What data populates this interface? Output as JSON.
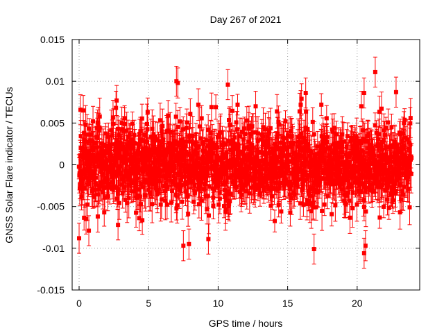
{
  "chart_data": {
    "type": "scatter",
    "title": "Day 267 of 2021",
    "xlabel": "GPS time / hours",
    "ylabel": "GNSS Solar Flare indicator / TECUs",
    "xlim": [
      -0.5,
      24.5
    ],
    "ylim": [
      -0.015,
      0.015
    ],
    "xticks": [
      0,
      5,
      10,
      15,
      20
    ],
    "yticks": [
      -0.015,
      -0.01,
      -0.005,
      0,
      0.005,
      0.01,
      0.015
    ],
    "xtick_labels": [
      "0",
      "5",
      "10",
      "15",
      "20"
    ],
    "ytick_labels": [
      "-0.015",
      "-0.01",
      "-0.005",
      "0",
      "0.005",
      "0.01",
      "0.015"
    ],
    "grid": true,
    "legend": "none",
    "error_bars": true,
    "series_color": "#ff0000",
    "x_range_of_data": [
      0,
      23.9
    ],
    "y_typical_range": [
      -0.005,
      0.005
    ],
    "series": [
      {
        "points": [
          {
            "x": 0.0,
            "y": -0.0088
          },
          {
            "x": 0.1,
            "y": 0.0066
          },
          {
            "x": 0.3,
            "y": 0.0065
          },
          {
            "x": 0.5,
            "y": -0.0065
          },
          {
            "x": 0.7,
            "y": -0.0079
          },
          {
            "x": 1.0,
            "y": 0.0052
          },
          {
            "x": 2.7,
            "y": 0.0077
          },
          {
            "x": 2.8,
            "y": -0.0072
          },
          {
            "x": 6.4,
            "y": 0.0059
          },
          {
            "x": 7.0,
            "y": 0.01
          },
          {
            "x": 7.1,
            "y": 0.0098
          },
          {
            "x": 7.5,
            "y": -0.0097
          },
          {
            "x": 7.9,
            "y": -0.0095
          },
          {
            "x": 8.0,
            "y": 0.0061
          },
          {
            "x": 9.3,
            "y": -0.0089
          },
          {
            "x": 10.7,
            "y": 0.0096
          },
          {
            "x": 12.7,
            "y": 0.007
          },
          {
            "x": 16.0,
            "y": 0.0079
          },
          {
            "x": 16.3,
            "y": 0.0086
          },
          {
            "x": 16.9,
            "y": -0.0101
          },
          {
            "x": 20.3,
            "y": 0.007
          },
          {
            "x": 20.5,
            "y": 0.0086
          },
          {
            "x": 20.5,
            "y": -0.0106
          },
          {
            "x": 20.6,
            "y": -0.0097
          },
          {
            "x": 21.3,
            "y": 0.0111
          },
          {
            "x": 22.8,
            "y": 0.0087
          }
        ]
      }
    ]
  }
}
